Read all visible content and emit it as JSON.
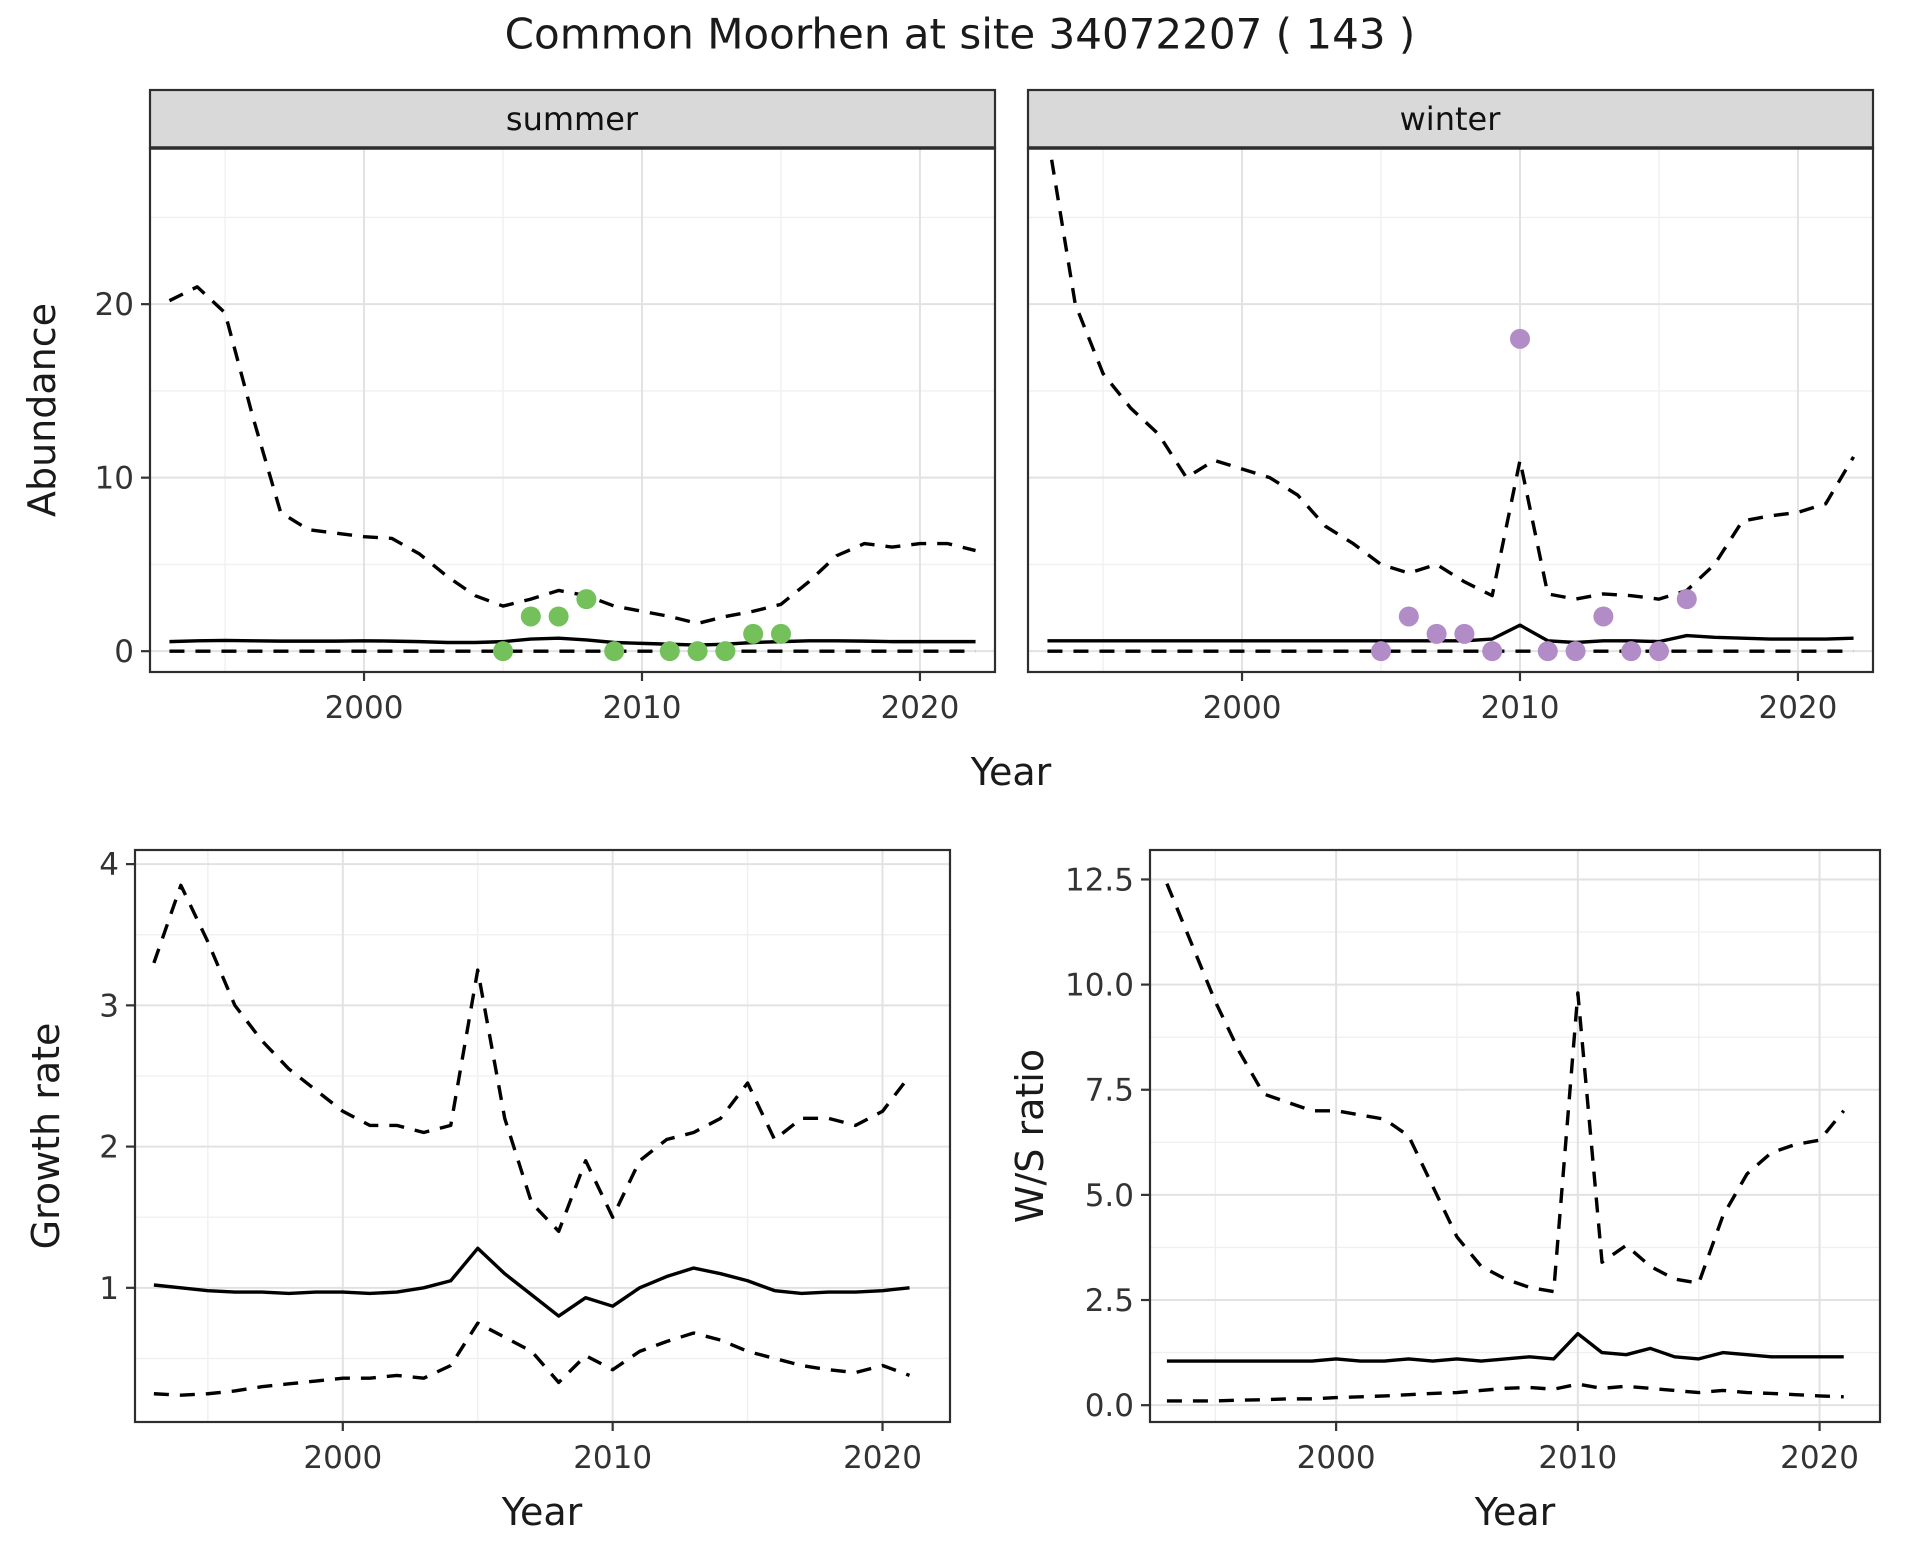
{
  "title": "Common Moorhen at site 34072207 ( 143 )",
  "colors": {
    "background": "#ffffff",
    "line": "#000000",
    "summer_points": "#74c05b",
    "winter_points": "#b18cc6",
    "strip_bg": "#d9d9d9",
    "panel_border": "#2e2e2e",
    "grid_major": "#e2e2e2",
    "grid_minor": "#f0f0f0",
    "axis_text": "#333333"
  },
  "chart_data": [
    {
      "type": "line",
      "panel": "abundance-summer",
      "facet_label": "summer",
      "xlabel": "Year",
      "ylabel": "Abundance",
      "xlim": [
        1992.3,
        2022.7
      ],
      "ylim": [
        -1.2,
        29
      ],
      "xticks": [
        2000,
        2010,
        2020
      ],
      "xtick_labels": [
        "2000",
        "2010",
        "2020"
      ],
      "yticks": [
        0,
        10,
        20
      ],
      "ytick_labels": [
        "0",
        "10",
        "20"
      ],
      "xminor": [
        1995,
        2005,
        2015
      ],
      "yminor": [
        5,
        15,
        25
      ],
      "series": [
        {
          "name": "upper_ci",
          "style": "dashed",
          "x": [
            1993,
            1994,
            1995,
            1996,
            1997,
            1998,
            1999,
            2000,
            2001,
            2002,
            2003,
            2004,
            2005,
            2006,
            2007,
            2008,
            2009,
            2010,
            2011,
            2012,
            2013,
            2014,
            2015,
            2016,
            2017,
            2018,
            2019,
            2020,
            2021,
            2022
          ],
          "y": [
            20.2,
            21.0,
            19.5,
            13.5,
            8.0,
            7.0,
            6.8,
            6.6,
            6.5,
            5.6,
            4.3,
            3.2,
            2.6,
            3.0,
            3.5,
            3.2,
            2.6,
            2.3,
            2.0,
            1.6,
            2.0,
            2.3,
            2.7,
            4.0,
            5.5,
            6.2,
            6.0,
            6.2,
            6.2,
            5.8
          ]
        },
        {
          "name": "median",
          "style": "solid",
          "x": [
            1993,
            1994,
            1995,
            1996,
            1997,
            1998,
            1999,
            2000,
            2001,
            2002,
            2003,
            2004,
            2005,
            2006,
            2007,
            2008,
            2009,
            2010,
            2011,
            2012,
            2013,
            2014,
            2015,
            2016,
            2017,
            2018,
            2019,
            2020,
            2021,
            2022
          ],
          "y": [
            0.55,
            0.6,
            0.62,
            0.6,
            0.58,
            0.58,
            0.58,
            0.6,
            0.58,
            0.55,
            0.5,
            0.5,
            0.55,
            0.7,
            0.75,
            0.65,
            0.5,
            0.45,
            0.4,
            0.35,
            0.4,
            0.5,
            0.55,
            0.6,
            0.6,
            0.58,
            0.55,
            0.55,
            0.55,
            0.55
          ]
        },
        {
          "name": "lower_ci",
          "style": "dashed",
          "x": [
            1993,
            1994,
            1995,
            1996,
            1997,
            1998,
            1999,
            2000,
            2001,
            2002,
            2003,
            2004,
            2005,
            2006,
            2007,
            2008,
            2009,
            2010,
            2011,
            2012,
            2013,
            2014,
            2015,
            2016,
            2017,
            2018,
            2019,
            2020,
            2021,
            2022
          ],
          "y": [
            0,
            0,
            0,
            0,
            0,
            0,
            0,
            0,
            0,
            0,
            0,
            0,
            0,
            0,
            0,
            0,
            0,
            0,
            0,
            0,
            0,
            0,
            0,
            0,
            0,
            0,
            0,
            0,
            0,
            0
          ]
        }
      ],
      "points": {
        "name": "summer-observations",
        "color_key": "summer_points",
        "x": [
          2005,
          2006,
          2007,
          2008,
          2009,
          2011,
          2012,
          2013,
          2014,
          2015
        ],
        "y": [
          0,
          2,
          2,
          3,
          0,
          0,
          0,
          0,
          1,
          1
        ]
      }
    },
    {
      "type": "line",
      "panel": "abundance-winter",
      "facet_label": "winter",
      "xlabel": "Year",
      "ylabel": "Abundance",
      "xlim": [
        1992.3,
        2022.7
      ],
      "ylim": [
        -1.2,
        29
      ],
      "xticks": [
        2000,
        2010,
        2020
      ],
      "xtick_labels": [
        "2000",
        "2010",
        "2020"
      ],
      "yticks": [
        0,
        10,
        20
      ],
      "ytick_labels": [
        "0",
        "10",
        "20"
      ],
      "xminor": [
        1995,
        2005,
        2015
      ],
      "yminor": [
        5,
        15,
        25
      ],
      "series": [
        {
          "name": "upper_ci",
          "style": "dashed",
          "x": [
            1993,
            1994,
            1995,
            1996,
            1997,
            1998,
            1999,
            2000,
            2001,
            2002,
            2003,
            2004,
            2005,
            2006,
            2007,
            2008,
            2009,
            2010,
            2011,
            2012,
            2013,
            2014,
            2015,
            2016,
            2017,
            2018,
            2019,
            2020,
            2021,
            2022
          ],
          "y": [
            29.8,
            20.0,
            16.0,
            14.0,
            12.5,
            10.0,
            11.0,
            10.5,
            10.0,
            9.0,
            7.2,
            6.2,
            5.0,
            4.5,
            5.0,
            4.0,
            3.2,
            11.0,
            3.3,
            3.0,
            3.3,
            3.2,
            3.0,
            3.5,
            5.0,
            7.5,
            7.8,
            8.0,
            8.5,
            11.2
          ]
        },
        {
          "name": "median",
          "style": "solid",
          "x": [
            1993,
            1994,
            1995,
            1996,
            1997,
            1998,
            1999,
            2000,
            2001,
            2002,
            2003,
            2004,
            2005,
            2006,
            2007,
            2008,
            2009,
            2010,
            2011,
            2012,
            2013,
            2014,
            2015,
            2016,
            2017,
            2018,
            2019,
            2020,
            2021,
            2022
          ],
          "y": [
            0.6,
            0.6,
            0.6,
            0.6,
            0.6,
            0.6,
            0.6,
            0.6,
            0.6,
            0.6,
            0.6,
            0.6,
            0.6,
            0.6,
            0.6,
            0.6,
            0.7,
            1.5,
            0.6,
            0.5,
            0.6,
            0.6,
            0.55,
            0.9,
            0.8,
            0.75,
            0.7,
            0.7,
            0.7,
            0.75
          ]
        },
        {
          "name": "lower_ci",
          "style": "dashed",
          "x": [
            1993,
            1994,
            1995,
            1996,
            1997,
            1998,
            1999,
            2000,
            2001,
            2002,
            2003,
            2004,
            2005,
            2006,
            2007,
            2008,
            2009,
            2010,
            2011,
            2012,
            2013,
            2014,
            2015,
            2016,
            2017,
            2018,
            2019,
            2020,
            2021,
            2022
          ],
          "y": [
            0,
            0,
            0,
            0,
            0,
            0,
            0,
            0,
            0,
            0,
            0,
            0,
            0,
            0,
            0,
            0,
            0,
            0,
            0,
            0,
            0,
            0,
            0,
            0,
            0,
            0,
            0,
            0,
            0,
            0
          ]
        }
      ],
      "points": {
        "name": "winter-observations",
        "color_key": "winter_points",
        "x": [
          2005,
          2006,
          2007,
          2008,
          2009,
          2010,
          2011,
          2012,
          2013,
          2014,
          2015,
          2016
        ],
        "y": [
          0,
          2,
          1,
          1,
          0,
          18,
          0,
          0,
          2,
          0,
          0,
          3
        ]
      }
    },
    {
      "type": "line",
      "panel": "growth-rate",
      "facet_label": "",
      "xlabel": "Year",
      "ylabel": "Growth rate",
      "xlim": [
        1992.3,
        2022.5
      ],
      "ylim": [
        0.05,
        4.1
      ],
      "xticks": [
        2000,
        2010,
        2020
      ],
      "xtick_labels": [
        "2000",
        "2010",
        "2020"
      ],
      "yticks": [
        1,
        2,
        3,
        4
      ],
      "ytick_labels": [
        "1",
        "2",
        "3",
        "4"
      ],
      "xminor": [
        1995,
        2005,
        2015
      ],
      "yminor": [
        0.5,
        1.5,
        2.5,
        3.5
      ],
      "series": [
        {
          "name": "upper_ci",
          "style": "dashed",
          "x": [
            1993,
            1994,
            1995,
            1996,
            1997,
            1998,
            1999,
            2000,
            2001,
            2002,
            2003,
            2004,
            2005,
            2006,
            2007,
            2008,
            2009,
            2010,
            2011,
            2012,
            2013,
            2014,
            2015,
            2016,
            2017,
            2018,
            2019,
            2020,
            2021
          ],
          "y": [
            3.3,
            3.85,
            3.45,
            3.0,
            2.75,
            2.55,
            2.4,
            2.25,
            2.15,
            2.15,
            2.1,
            2.15,
            3.25,
            2.2,
            1.6,
            1.4,
            1.9,
            1.5,
            1.9,
            2.05,
            2.1,
            2.2,
            2.45,
            2.05,
            2.2,
            2.2,
            2.15,
            2.25,
            2.5
          ]
        },
        {
          "name": "median",
          "style": "solid",
          "x": [
            1993,
            1994,
            1995,
            1996,
            1997,
            1998,
            1999,
            2000,
            2001,
            2002,
            2003,
            2004,
            2005,
            2006,
            2007,
            2008,
            2009,
            2010,
            2011,
            2012,
            2013,
            2014,
            2015,
            2016,
            2017,
            2018,
            2019,
            2020,
            2021
          ],
          "y": [
            1.02,
            1.0,
            0.98,
            0.97,
            0.97,
            0.96,
            0.97,
            0.97,
            0.96,
            0.97,
            1.0,
            1.05,
            1.28,
            1.1,
            0.95,
            0.8,
            0.93,
            0.87,
            1.0,
            1.08,
            1.14,
            1.1,
            1.05,
            0.98,
            0.96,
            0.97,
            0.97,
            0.98,
            1.0
          ]
        },
        {
          "name": "lower_ci",
          "style": "dashed",
          "x": [
            1993,
            1994,
            1995,
            1996,
            1997,
            1998,
            1999,
            2000,
            2001,
            2002,
            2003,
            2004,
            2005,
            2006,
            2007,
            2008,
            2009,
            2010,
            2011,
            2012,
            2013,
            2014,
            2015,
            2016,
            2017,
            2018,
            2019,
            2020,
            2021
          ],
          "y": [
            0.25,
            0.24,
            0.25,
            0.27,
            0.3,
            0.32,
            0.34,
            0.36,
            0.36,
            0.38,
            0.36,
            0.45,
            0.75,
            0.65,
            0.55,
            0.33,
            0.52,
            0.42,
            0.55,
            0.62,
            0.68,
            0.63,
            0.55,
            0.5,
            0.45,
            0.42,
            0.4,
            0.45,
            0.38
          ]
        }
      ]
    },
    {
      "type": "line",
      "panel": "ws-ratio",
      "facet_label": "",
      "xlabel": "Year",
      "ylabel": "W/S ratio",
      "xlim": [
        1992.3,
        2022.5
      ],
      "ylim": [
        -0.4,
        13.2
      ],
      "xticks": [
        2000,
        2010,
        2020
      ],
      "xtick_labels": [
        "2000",
        "2010",
        "2020"
      ],
      "yticks": [
        0,
        2.5,
        5,
        7.5,
        10,
        12.5
      ],
      "ytick_labels": [
        "0.0",
        "2.5",
        "5.0",
        "7.5",
        "10.0",
        "12.5"
      ],
      "xminor": [
        1995,
        2005,
        2015
      ],
      "yminor": [
        1.25,
        3.75,
        6.25,
        8.75,
        11.25
      ],
      "series": [
        {
          "name": "upper_ci",
          "style": "dashed",
          "x": [
            1993,
            1994,
            1995,
            1996,
            1997,
            1998,
            1999,
            2000,
            2001,
            2002,
            2003,
            2004,
            2005,
            2006,
            2007,
            2008,
            2009,
            2010,
            2011,
            2012,
            2013,
            2014,
            2015,
            2016,
            2017,
            2018,
            2019,
            2020,
            2021
          ],
          "y": [
            12.4,
            11.0,
            9.6,
            8.4,
            7.4,
            7.2,
            7.0,
            7.0,
            6.9,
            6.8,
            6.4,
            5.2,
            4.0,
            3.3,
            3.0,
            2.8,
            2.7,
            9.8,
            3.4,
            3.8,
            3.3,
            3.0,
            2.9,
            4.5,
            5.5,
            6.0,
            6.2,
            6.3,
            7.0
          ]
        },
        {
          "name": "median",
          "style": "solid",
          "x": [
            1993,
            1994,
            1995,
            1996,
            1997,
            1998,
            1999,
            2000,
            2001,
            2002,
            2003,
            2004,
            2005,
            2006,
            2007,
            2008,
            2009,
            2010,
            2011,
            2012,
            2013,
            2014,
            2015,
            2016,
            2017,
            2018,
            2019,
            2020,
            2021
          ],
          "y": [
            1.05,
            1.05,
            1.05,
            1.05,
            1.05,
            1.05,
            1.05,
            1.1,
            1.05,
            1.05,
            1.1,
            1.05,
            1.1,
            1.05,
            1.1,
            1.15,
            1.1,
            1.7,
            1.25,
            1.2,
            1.35,
            1.15,
            1.1,
            1.25,
            1.2,
            1.15,
            1.15,
            1.15,
            1.15
          ]
        },
        {
          "name": "lower_ci",
          "style": "dashed",
          "x": [
            1993,
            1994,
            1995,
            1996,
            1997,
            1998,
            1999,
            2000,
            2001,
            2002,
            2003,
            2004,
            2005,
            2006,
            2007,
            2008,
            2009,
            2010,
            2011,
            2012,
            2013,
            2014,
            2015,
            2016,
            2017,
            2018,
            2019,
            2020,
            2021
          ],
          "y": [
            0.1,
            0.1,
            0.1,
            0.12,
            0.13,
            0.15,
            0.15,
            0.18,
            0.2,
            0.22,
            0.25,
            0.28,
            0.3,
            0.35,
            0.4,
            0.42,
            0.38,
            0.5,
            0.4,
            0.45,
            0.4,
            0.35,
            0.3,
            0.35,
            0.3,
            0.28,
            0.25,
            0.22,
            0.2
          ]
        }
      ]
    }
  ]
}
